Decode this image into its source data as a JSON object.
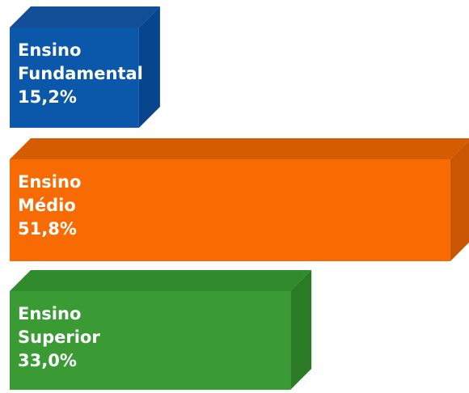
{
  "chart_data": {
    "type": "bar",
    "categories": [
      "Ensino\nFundamental",
      "Ensino\nMédio",
      "Ensino\nSuperior"
    ],
    "values": [
      15.2,
      51.8,
      33.0
    ],
    "value_labels": [
      "15,2%",
      "51,8%",
      "33,0%"
    ],
    "colors": [
      "#0b57a9",
      "#f76b02",
      "#3a9b34"
    ],
    "side_colors": [
      "#07468c",
      "#c95602",
      "#2b7b26"
    ],
    "top_colors": [
      "#124f98",
      "#d65c02",
      "#318a2c"
    ]
  }
}
